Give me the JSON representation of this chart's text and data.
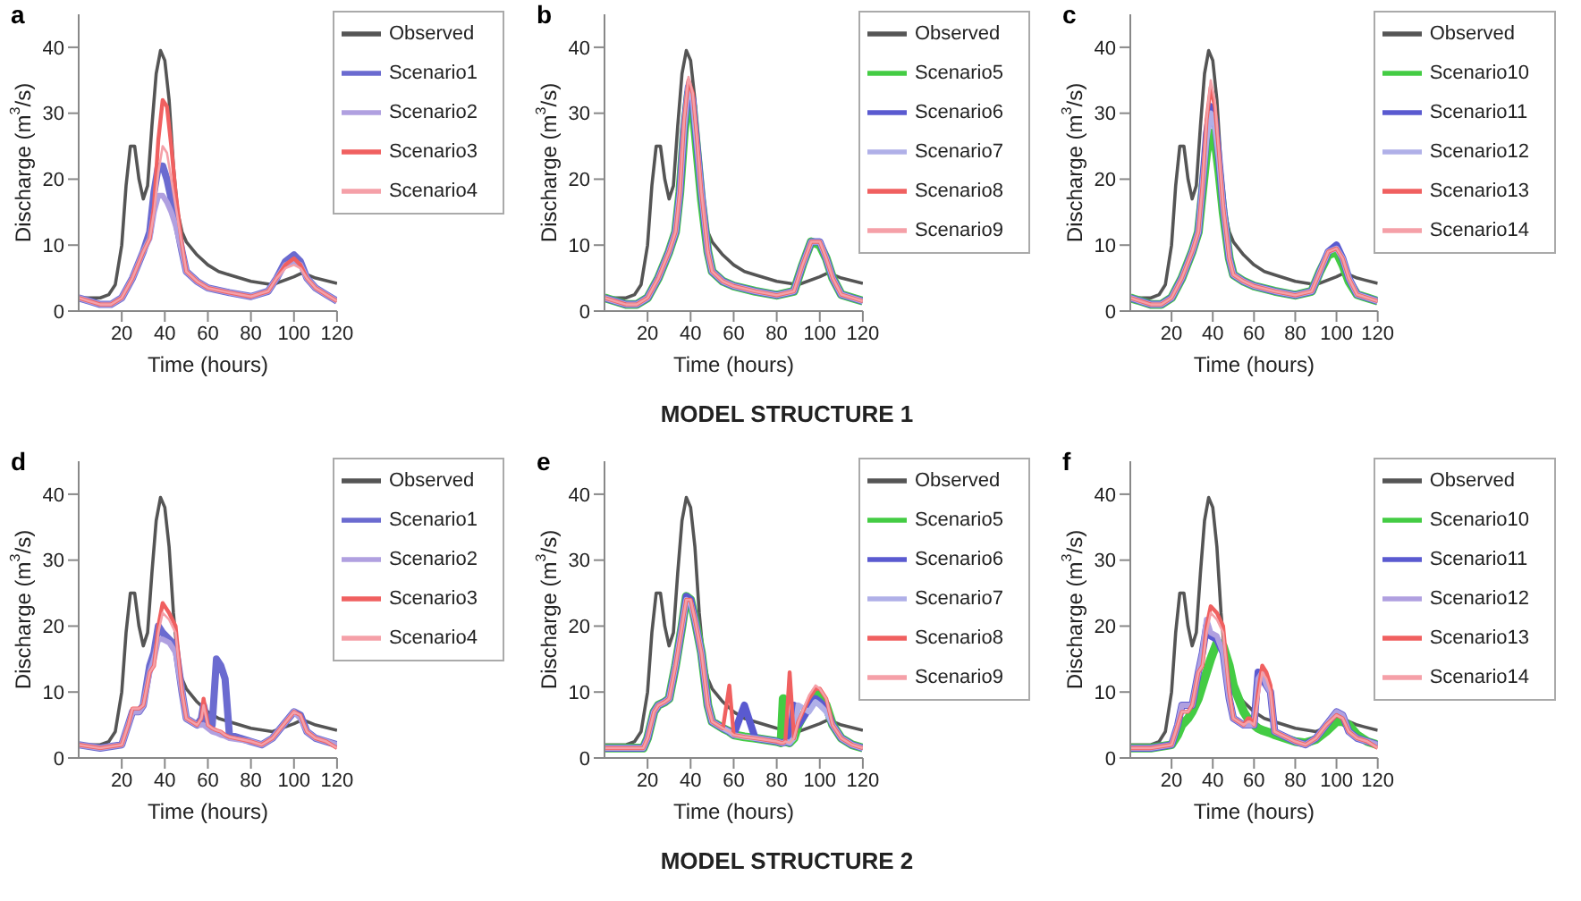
{
  "chart_data": [
    {
      "type": "line",
      "title": "a",
      "xlabel": "Time (hours)",
      "ylabel": "Discharge (m$^{3}$/s)",
      "xlim": [
        0,
        120
      ],
      "xticks": [
        20,
        40,
        60,
        80,
        100,
        120
      ],
      "ylim": [
        0,
        45
      ],
      "yticks": [
        0,
        10,
        20,
        30,
        40
      ],
      "legend": "top right",
      "x": [
        0,
        5,
        10,
        15,
        20,
        25,
        30,
        33,
        35,
        37,
        39,
        41,
        43,
        45,
        48,
        50,
        55,
        60,
        70,
        80,
        88,
        92,
        96,
        100,
        103,
        106,
        110,
        115,
        120
      ],
      "series": [
        {
          "name": "Observed",
          "color": "#555555",
          "x": [
            0,
            5,
            10,
            14,
            17,
            20,
            22,
            24,
            26,
            28,
            30,
            32,
            34,
            36,
            38,
            40,
            42,
            44,
            46,
            48,
            50,
            55,
            60,
            65,
            70,
            80,
            90,
            100,
            104,
            110,
            120
          ],
          "values": [
            2,
            2,
            2,
            2.5,
            4,
            10,
            19,
            25,
            25,
            20,
            17,
            19,
            28,
            36,
            39.5,
            38,
            32,
            22,
            15,
            12,
            10.5,
            8.5,
            7,
            6,
            5.5,
            4.5,
            4,
            5.2,
            5.8,
            5,
            4.2
          ]
        },
        {
          "name": "Scenario1",
          "color": "#6b6bd0",
          "values": [
            2,
            1.5,
            1,
            1,
            2,
            5,
            9,
            12,
            18,
            22,
            22,
            20,
            17,
            14,
            9,
            6,
            4.5,
            3.5,
            2.8,
            2.2,
            3,
            5,
            7.5,
            8.5,
            7.5,
            5,
            3.5,
            2.5,
            1.5
          ]
        },
        {
          "name": "Scenario2",
          "color": "#b0a0e0",
          "values": [
            2,
            1.5,
            1,
            1,
            2,
            5,
            9,
            11,
            15,
            17.5,
            17.5,
            16.5,
            15,
            13,
            9,
            6,
            4.5,
            3.5,
            2.8,
            2.2,
            3,
            5,
            7,
            7.5,
            7,
            5,
            3.5,
            2.5,
            1.5
          ]
        },
        {
          "name": "Scenario3",
          "color": "#f06060",
          "values": [
            2,
            1.5,
            1,
            1,
            2,
            5,
            9,
            11,
            16,
            26,
            32,
            31,
            25,
            18,
            10,
            6,
            4.5,
            3.5,
            2.8,
            2.2,
            3,
            5,
            7,
            8,
            7,
            5,
            3.5,
            2.5,
            1.5
          ]
        },
        {
          "name": "Scenario4",
          "color": "#f5a0a8",
          "values": [
            2,
            1.5,
            1,
            1,
            2,
            5,
            9,
            11,
            15,
            21,
            25,
            24,
            20,
            16,
            10,
            6,
            4.5,
            3.5,
            2.8,
            2.2,
            3,
            5,
            6.5,
            7,
            6.5,
            5,
            3.5,
            2.5,
            1.5
          ]
        }
      ]
    },
    {
      "type": "line",
      "title": "b",
      "xlabel": "Time (hours)",
      "ylabel": "Discharge (m$^{3}$/s)",
      "xlim": [
        0,
        120
      ],
      "xticks": [
        20,
        40,
        60,
        80,
        100,
        120
      ],
      "ylim": [
        0,
        45
      ],
      "yticks": [
        0,
        10,
        20,
        30,
        40
      ],
      "legend": "top right",
      "annotations": [
        "MODEL STRUCTURE 1"
      ],
      "x": [
        0,
        5,
        10,
        15,
        20,
        25,
        30,
        33,
        35,
        37,
        39,
        41,
        43,
        45,
        48,
        50,
        55,
        60,
        70,
        80,
        88,
        92,
        96,
        100,
        103,
        106,
        110,
        115,
        120
      ],
      "series": [
        {
          "name": "Observed",
          "color": "#555555",
          "x": [
            0,
            5,
            10,
            14,
            17,
            20,
            22,
            24,
            26,
            28,
            30,
            32,
            34,
            36,
            38,
            40,
            42,
            44,
            46,
            48,
            50,
            55,
            60,
            65,
            70,
            80,
            90,
            100,
            104,
            110,
            120
          ],
          "values": [
            2,
            2,
            2,
            2.5,
            4,
            10,
            19,
            25,
            25,
            20,
            17,
            19,
            28,
            36,
            39.5,
            38,
            32,
            22,
            15,
            12,
            10.5,
            8.5,
            7,
            6,
            5.5,
            4.5,
            4,
            5.2,
            5.8,
            5,
            4.2
          ]
        },
        {
          "name": "Scenario5",
          "color": "#44cc44",
          "values": [
            2,
            1.5,
            1,
            1,
            2,
            5,
            9,
            12,
            18,
            27,
            33,
            31,
            24,
            17,
            9,
            6,
            4.5,
            3.8,
            3,
            2.4,
            3,
            7,
            10.5,
            10,
            8,
            5,
            2.5,
            2,
            1.5
          ]
        },
        {
          "name": "Scenario6",
          "color": "#5a5ad0",
          "values": [
            2,
            1.5,
            1,
            1,
            2,
            5,
            9,
            12,
            18,
            28,
            34,
            32,
            25,
            18,
            9,
            6,
            4.5,
            3.8,
            3,
            2.4,
            3,
            7,
            10.5,
            10.5,
            8,
            5,
            2.5,
            2,
            1.5
          ]
        },
        {
          "name": "Scenario7",
          "color": "#b0b0e8",
          "values": [
            2,
            1.5,
            1,
            1,
            2,
            5,
            9,
            12,
            18,
            28,
            34.5,
            32,
            25,
            18,
            9,
            6,
            4.5,
            3.8,
            3,
            2.4,
            3,
            7,
            10.5,
            10.5,
            8,
            5,
            2.5,
            2,
            1.5
          ]
        },
        {
          "name": "Scenario8",
          "color": "#f06060",
          "values": [
            2,
            1.5,
            1,
            1,
            2,
            5,
            9,
            12,
            18,
            29,
            35,
            33,
            26,
            18,
            9,
            6,
            4.5,
            3.8,
            3,
            2.4,
            3,
            7,
            10.5,
            10.5,
            8,
            5,
            2.5,
            2,
            1.5
          ]
        },
        {
          "name": "Scenario9",
          "color": "#f5a0a8",
          "values": [
            2,
            1.5,
            1,
            1,
            2,
            5,
            9,
            12,
            18,
            29,
            35.5,
            33,
            26,
            18,
            9,
            6,
            4.5,
            3.8,
            3,
            2.4,
            3,
            7,
            10.5,
            10.5,
            8,
            5,
            2.5,
            2,
            1.5
          ]
        }
      ]
    },
    {
      "type": "line",
      "title": "c",
      "xlabel": "Time (hours)",
      "ylabel": "Discharge (m$^{3}$/s)",
      "xlim": [
        0,
        120
      ],
      "xticks": [
        20,
        40,
        60,
        80,
        100,
        120
      ],
      "ylim": [
        0,
        45
      ],
      "yticks": [
        0,
        10,
        20,
        30,
        40
      ],
      "legend": "top right",
      "x": [
        0,
        5,
        10,
        15,
        20,
        25,
        30,
        33,
        35,
        37,
        39,
        41,
        43,
        45,
        48,
        50,
        55,
        60,
        70,
        80,
        88,
        92,
        96,
        100,
        103,
        106,
        110,
        115,
        120
      ],
      "series": [
        {
          "name": "Observed",
          "color": "#555555",
          "x": [
            0,
            5,
            10,
            14,
            17,
            20,
            22,
            24,
            26,
            28,
            30,
            32,
            34,
            36,
            38,
            40,
            42,
            44,
            46,
            48,
            50,
            55,
            60,
            65,
            70,
            80,
            90,
            100,
            104,
            110,
            120
          ],
          "values": [
            2,
            2,
            2,
            2.5,
            4,
            10,
            19,
            25,
            25,
            20,
            17,
            19,
            28,
            36,
            39.5,
            38,
            32,
            22,
            15,
            12,
            10.5,
            8.5,
            7,
            6,
            5.5,
            4.5,
            4,
            5.2,
            5.8,
            5,
            4.2
          ]
        },
        {
          "name": "Scenario10",
          "color": "#44cc44",
          "values": [
            2,
            1.5,
            1,
            1,
            2,
            5,
            9,
            12,
            18,
            24,
            27,
            26,
            21,
            15,
            8,
            5.5,
            4.5,
            3.8,
            3,
            2.4,
            3,
            6,
            8.5,
            9,
            7,
            4.5,
            2.5,
            2,
            1.5
          ]
        },
        {
          "name": "Scenario11",
          "color": "#5a5ad0",
          "values": [
            2,
            1.5,
            1,
            1,
            2,
            5,
            9,
            12,
            19,
            27,
            31,
            29,
            23,
            16,
            8,
            5.5,
            4.5,
            3.8,
            3,
            2.4,
            3,
            6,
            9,
            10,
            8,
            5,
            2.5,
            2,
            1.5
          ]
        },
        {
          "name": "Scenario12",
          "color": "#b0b0e8",
          "values": [
            2,
            1.5,
            1,
            1,
            2,
            5,
            9,
            12,
            19,
            26,
            30,
            28,
            23,
            16,
            8,
            5.5,
            4.5,
            3.8,
            3,
            2.4,
            3,
            6,
            9,
            9.5,
            8,
            5,
            2.5,
            2,
            1.5
          ]
        },
        {
          "name": "Scenario13",
          "color": "#f06060",
          "values": [
            2,
            1.5,
            1,
            1,
            2,
            5,
            9,
            12,
            19,
            29,
            34,
            31,
            24,
            16,
            8,
            5.5,
            4.5,
            3.8,
            3,
            2.4,
            3,
            6,
            9,
            9.5,
            8,
            5,
            2.5,
            2,
            1.5
          ]
        },
        {
          "name": "Scenario14",
          "color": "#f5a0a8",
          "values": [
            2,
            1.5,
            1,
            1,
            2,
            5,
            9,
            12,
            19,
            29,
            35,
            32,
            24,
            16,
            8,
            5.5,
            4.5,
            3.8,
            3,
            2.4,
            3,
            6,
            9,
            9.5,
            8,
            5,
            2.5,
            2,
            1.5
          ]
        }
      ]
    },
    {
      "type": "line",
      "title": "d",
      "xlabel": "Time (hours)",
      "ylabel": "Discharge (m$^{3}$/s)",
      "xlim": [
        0,
        120
      ],
      "xticks": [
        20,
        40,
        60,
        80,
        100,
        120
      ],
      "ylim": [
        0,
        45
      ],
      "yticks": [
        0,
        10,
        20,
        30,
        40
      ],
      "legend": "top right",
      "x": [
        0,
        10,
        20,
        23,
        25,
        28,
        30,
        33,
        35,
        37,
        39,
        42,
        45,
        48,
        50,
        55,
        57,
        58,
        60,
        62,
        64,
        66,
        68,
        70,
        80,
        85,
        90,
        95,
        100,
        103,
        106,
        110,
        115,
        120
      ],
      "series": [
        {
          "name": "Observed",
          "color": "#555555",
          "x": [
            0,
            5,
            10,
            14,
            17,
            20,
            22,
            24,
            26,
            28,
            30,
            32,
            34,
            36,
            38,
            40,
            42,
            44,
            46,
            48,
            50,
            55,
            60,
            65,
            70,
            80,
            90,
            100,
            104,
            110,
            120
          ],
          "values": [
            2,
            2,
            2,
            2.5,
            4,
            10,
            19,
            25,
            25,
            20,
            17,
            19,
            28,
            36,
            39.5,
            38,
            32,
            22,
            15,
            12,
            10.5,
            8.5,
            7,
            6,
            5.5,
            4.5,
            4,
            5.2,
            5.8,
            5,
            4.2
          ]
        },
        {
          "name": "Scenario1",
          "color": "#6b6bd0",
          "values": [
            2,
            1.5,
            2,
            5,
            7,
            7,
            8,
            14,
            16,
            20,
            19,
            18,
            17,
            10,
            6,
            5,
            6,
            8,
            5,
            5,
            15,
            14,
            12,
            3.5,
            2.5,
            2,
            3,
            5,
            7,
            6.5,
            4,
            3,
            2.5,
            2
          ]
        },
        {
          "name": "Scenario2",
          "color": "#b0a0e0",
          "values": [
            2,
            1.5,
            2,
            5,
            7,
            7,
            8,
            13,
            15,
            18,
            18,
            17.5,
            16,
            10,
            6,
            5,
            5,
            5,
            4.5,
            4,
            3.8,
            3.5,
            3.3,
            3,
            2.5,
            2,
            3,
            5,
            7,
            6,
            4,
            3,
            2.5,
            2
          ]
        },
        {
          "name": "Scenario3",
          "color": "#f06060",
          "values": [
            2,
            1.5,
            2,
            5,
            7.5,
            7.5,
            8,
            13,
            14,
            20,
            23.5,
            22,
            20,
            10,
            6,
            5,
            6,
            9,
            5,
            4.5,
            4.2,
            4,
            3.5,
            3.2,
            2.5,
            2,
            3,
            5,
            7,
            6.5,
            4,
            3,
            2.5,
            1.5
          ]
        },
        {
          "name": "Scenario4",
          "color": "#f5a0a8",
          "values": [
            2,
            1.5,
            2,
            5,
            7.5,
            7.5,
            8,
            13,
            14,
            19,
            22,
            21,
            19,
            10,
            6,
            5,
            6,
            8,
            5,
            4.5,
            4.2,
            4,
            3.5,
            3.2,
            2.5,
            2,
            3,
            5,
            7,
            6.5,
            4,
            3,
            2.5,
            1.5
          ]
        }
      ]
    },
    {
      "type": "line",
      "title": "e",
      "xlabel": "Time (hours)",
      "ylabel": "Discharge (m$^{3}$/s)",
      "xlim": [
        0,
        120
      ],
      "xticks": [
        20,
        40,
        60,
        80,
        100,
        120
      ],
      "ylim": [
        0,
        45
      ],
      "yticks": [
        0,
        10,
        20,
        30,
        40
      ],
      "legend": "top right",
      "x": [
        0,
        10,
        18,
        20,
        23,
        25,
        28,
        30,
        33,
        36,
        38,
        40,
        42,
        45,
        48,
        50,
        55,
        58,
        60,
        65,
        70,
        80,
        82,
        83,
        84,
        86,
        88,
        90,
        95,
        98,
        100,
        103,
        106,
        110,
        115,
        120
      ],
      "series": [
        {
          "name": "Observed",
          "color": "#555555",
          "x": [
            0,
            5,
            10,
            14,
            17,
            20,
            22,
            24,
            26,
            28,
            30,
            32,
            34,
            36,
            38,
            40,
            42,
            44,
            46,
            48,
            50,
            55,
            60,
            65,
            70,
            80,
            90,
            100,
            104,
            110,
            120
          ],
          "values": [
            2,
            2,
            2,
            2.5,
            4,
            10,
            19,
            25,
            25,
            20,
            17,
            19,
            28,
            36,
            39.5,
            38,
            32,
            22,
            15,
            12,
            10.5,
            8.5,
            7,
            6,
            5.5,
            4.5,
            4,
            5.2,
            5.8,
            5,
            4.2
          ]
        },
        {
          "name": "Scenario5",
          "color": "#44cc44",
          "values": [
            1.5,
            1.5,
            1.5,
            3,
            7,
            8,
            8.5,
            9,
            14,
            20,
            24.5,
            24,
            21,
            16,
            8,
            5.5,
            4.5,
            4,
            3.5,
            3.2,
            3,
            2.5,
            2.3,
            9,
            2.5,
            2.3,
            3,
            5,
            8,
            10,
            9.5,
            8,
            5,
            3,
            2,
            1.5
          ]
        },
        {
          "name": "Scenario6",
          "color": "#5a5ad0",
          "values": [
            1.5,
            1.5,
            1.5,
            3,
            7,
            8,
            8.5,
            9,
            14,
            20,
            24.5,
            24,
            21,
            16,
            8,
            5.5,
            4.5,
            4,
            3.5,
            8,
            3,
            2.5,
            2.3,
            2.3,
            2.5,
            2.3,
            8,
            5,
            7.5,
            9,
            8.5,
            7.5,
            5,
            3,
            2,
            1.5
          ]
        },
        {
          "name": "Scenario7",
          "color": "#b0b0e8",
          "values": [
            1.5,
            1.5,
            1.5,
            3,
            7,
            8,
            8.5,
            9,
            14,
            20,
            24,
            23.5,
            21,
            16,
            8,
            5.5,
            4.5,
            4,
            3.5,
            3.2,
            3,
            2.5,
            2.3,
            2.3,
            2.5,
            2.3,
            3,
            8,
            7,
            8.5,
            8,
            7,
            5,
            3,
            2,
            1.5
          ]
        },
        {
          "name": "Scenario8",
          "color": "#f06060",
          "values": [
            1.5,
            1.5,
            1.5,
            3,
            7,
            8,
            8.5,
            9,
            14,
            20,
            24,
            24,
            21,
            16,
            8,
            5.5,
            4.5,
            11,
            3.5,
            3.2,
            3,
            2.5,
            2.3,
            2.3,
            2.5,
            13,
            3,
            5.5,
            9,
            10.5,
            10.5,
            9,
            5,
            3,
            2,
            1.5
          ]
        },
        {
          "name": "Scenario9",
          "color": "#f5a0a8",
          "values": [
            1.5,
            1.5,
            1.5,
            3,
            7,
            8,
            8.5,
            9,
            14,
            20,
            24,
            24,
            21,
            16,
            8,
            5.5,
            4.5,
            4,
            3.5,
            3.2,
            3,
            2.5,
            2.3,
            2.3,
            2.5,
            2.3,
            3,
            5.5,
            9.5,
            11,
            10.5,
            9,
            5,
            3,
            2,
            1.5
          ]
        }
      ]
    },
    {
      "type": "line",
      "title": "f",
      "xlabel": "Time (hours)",
      "ylabel": "Discharge (m$^{3}$/s)",
      "xlim": [
        0,
        120
      ],
      "xticks": [
        20,
        40,
        60,
        80,
        100,
        120
      ],
      "ylim": [
        0,
        45
      ],
      "yticks": [
        0,
        10,
        20,
        30,
        40
      ],
      "legend": "top right",
      "annotations": [
        "MODEL STRUCTURE 2"
      ],
      "x": [
        0,
        10,
        20,
        23,
        25,
        28,
        30,
        33,
        35,
        37,
        39,
        42,
        45,
        48,
        50,
        55,
        57,
        58,
        60,
        62,
        64,
        66,
        68,
        70,
        80,
        85,
        90,
        95,
        100,
        103,
        106,
        110,
        115,
        120
      ],
      "series": [
        {
          "name": "Observed",
          "color": "#555555",
          "x": [
            0,
            5,
            10,
            14,
            17,
            20,
            22,
            24,
            26,
            28,
            30,
            32,
            34,
            36,
            38,
            40,
            42,
            44,
            46,
            48,
            50,
            55,
            60,
            65,
            70,
            80,
            90,
            100,
            104,
            110,
            120
          ],
          "values": [
            2,
            2,
            2,
            2.5,
            4,
            10,
            19,
            25,
            25,
            20,
            17,
            19,
            28,
            36,
            39.5,
            38,
            32,
            22,
            15,
            12,
            10.5,
            8.5,
            7,
            6,
            5.5,
            4.5,
            4,
            5.2,
            5.8,
            5,
            4.2
          ]
        },
        {
          "name": "Scenario10",
          "color": "#44cc44",
          "values": [
            1.5,
            1.5,
            2,
            3.5,
            5,
            6,
            7,
            9,
            11,
            13,
            15,
            17.5,
            17,
            14,
            11,
            7,
            6,
            5.5,
            5,
            4.5,
            4.2,
            4,
            3.8,
            3.5,
            2.5,
            2.3,
            2.8,
            4,
            5.5,
            5.5,
            5,
            3.5,
            2.5,
            2
          ]
        },
        {
          "name": "Scenario11",
          "color": "#5a5ad0",
          "values": [
            1.5,
            1.5,
            2,
            5,
            8,
            8,
            8,
            13,
            16,
            20,
            18.5,
            18,
            16,
            9,
            6,
            5,
            5,
            5,
            5,
            13,
            12,
            11,
            10,
            4,
            2.5,
            2,
            3,
            5,
            7,
            6.5,
            4,
            3,
            2.5,
            2
          ]
        },
        {
          "name": "Scenario12",
          "color": "#b0a0e0",
          "values": [
            1.5,
            1.5,
            2,
            5,
            8,
            8,
            8,
            13,
            16,
            21,
            19,
            18.5,
            16,
            9,
            6,
            5,
            5,
            5,
            5,
            12,
            13,
            11,
            10,
            4,
            2.5,
            2,
            3,
            5,
            7,
            6.5,
            4,
            3,
            2.5,
            2
          ]
        },
        {
          "name": "Scenario13",
          "color": "#f06060",
          "values": [
            1.5,
            1.5,
            2,
            5,
            7,
            7,
            8,
            13,
            14,
            20,
            23,
            22,
            20,
            10,
            6,
            5,
            6,
            6,
            5,
            10,
            14,
            13,
            11,
            4,
            2.5,
            2,
            3,
            5,
            6.5,
            6,
            4,
            3,
            2.5,
            1.5
          ]
        },
        {
          "name": "Scenario14",
          "color": "#f5a0a8",
          "values": [
            1.5,
            1.5,
            2,
            5,
            7,
            7,
            8,
            13,
            14,
            19,
            22,
            21,
            19,
            10,
            6,
            5,
            5.5,
            5.5,
            5,
            9,
            13,
            12,
            10,
            4,
            2.5,
            2,
            3,
            5,
            6.5,
            6,
            4,
            3,
            2.5,
            1.5
          ]
        }
      ]
    }
  ]
}
